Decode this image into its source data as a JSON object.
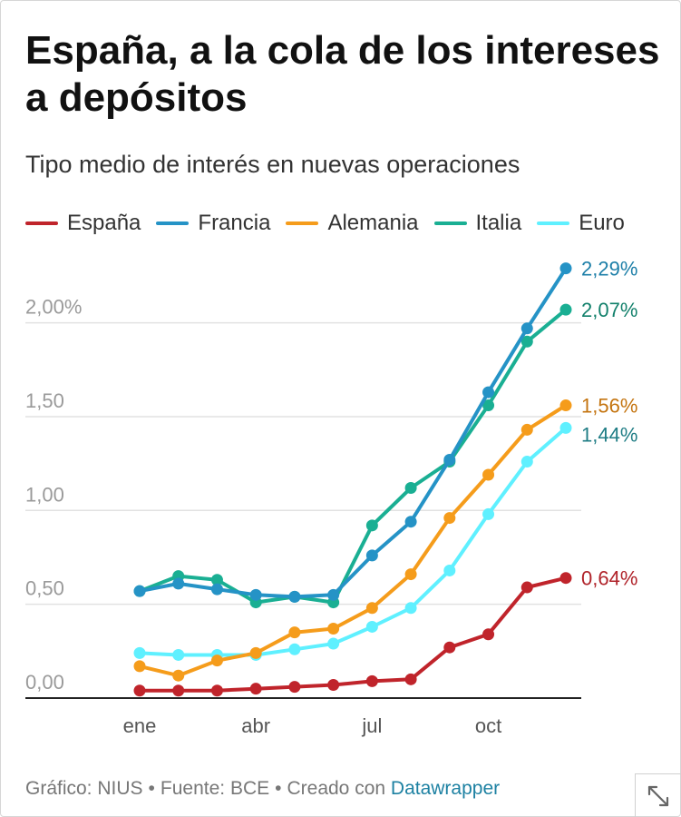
{
  "title": "España, a la cola de los intereses a depósitos",
  "subtitle": "Tipo medio de interés en nuevas operaciones",
  "footer": {
    "chart_by": "Gráfico: NIUS",
    "source": "Fuente: BCE",
    "created_with": "Creado con",
    "tool": "Datawrapper",
    "separator": "•"
  },
  "expand_icon": "expand-diagonal-icon",
  "chart_data": {
    "type": "line",
    "x": [
      1,
      2,
      3,
      4,
      5,
      6,
      7,
      8,
      9,
      10,
      11,
      12
    ],
    "x_ticks": [
      {
        "label": "ene",
        "x": 1
      },
      {
        "label": "abr",
        "x": 4
      },
      {
        "label": "jul",
        "x": 7
      },
      {
        "label": "oct",
        "x": 10
      }
    ],
    "y_ticks": [
      {
        "label": "0,00",
        "value": 0
      },
      {
        "label": "0,50",
        "value": 0.5
      },
      {
        "label": "1,00",
        "value": 1
      },
      {
        "label": "1,50",
        "value": 1.5
      },
      {
        "label": "2,00%",
        "value": 2
      }
    ],
    "ylim": [
      0,
      2.29
    ],
    "grid": true,
    "legend_position": "top",
    "series": [
      {
        "name": "Euro",
        "color": "#5ff0ff",
        "label_color": "#1f7d85",
        "values": [
          0.24,
          0.23,
          0.23,
          0.23,
          0.26,
          0.29,
          0.38,
          0.48,
          0.68,
          0.98,
          1.26,
          1.44
        ],
        "end_label": "1,44%"
      },
      {
        "name": "Alemania",
        "color": "#f59c1b",
        "label_color": "#c4740f",
        "values": [
          0.17,
          0.12,
          0.2,
          0.24,
          0.35,
          0.37,
          0.48,
          0.66,
          0.96,
          1.19,
          1.43,
          1.56
        ],
        "end_label": "1,56%"
      },
      {
        "name": "España",
        "color": "#c0242b",
        "label_color": "#b0232a",
        "values": [
          0.04,
          0.04,
          0.04,
          0.05,
          0.06,
          0.07,
          0.09,
          0.1,
          0.27,
          0.34,
          0.59,
          0.64
        ],
        "end_label": "0,64%"
      },
      {
        "name": "Italia",
        "color": "#1aaf93",
        "label_color": "#12806b",
        "values": [
          0.57,
          0.65,
          0.63,
          0.51,
          0.54,
          0.51,
          0.92,
          1.12,
          1.26,
          1.56,
          1.9,
          2.07
        ],
        "end_label": "2,07%"
      },
      {
        "name": "Francia",
        "color": "#2593c6",
        "label_color": "#1d7fa8",
        "values": [
          0.57,
          0.61,
          0.58,
          0.55,
          0.54,
          0.55,
          0.76,
          0.94,
          1.27,
          1.63,
          1.97,
          2.29
        ],
        "end_label": "2,29%"
      }
    ],
    "legend_order": [
      "España",
      "Francia",
      "Alemania",
      "Italia",
      "Euro"
    ]
  }
}
